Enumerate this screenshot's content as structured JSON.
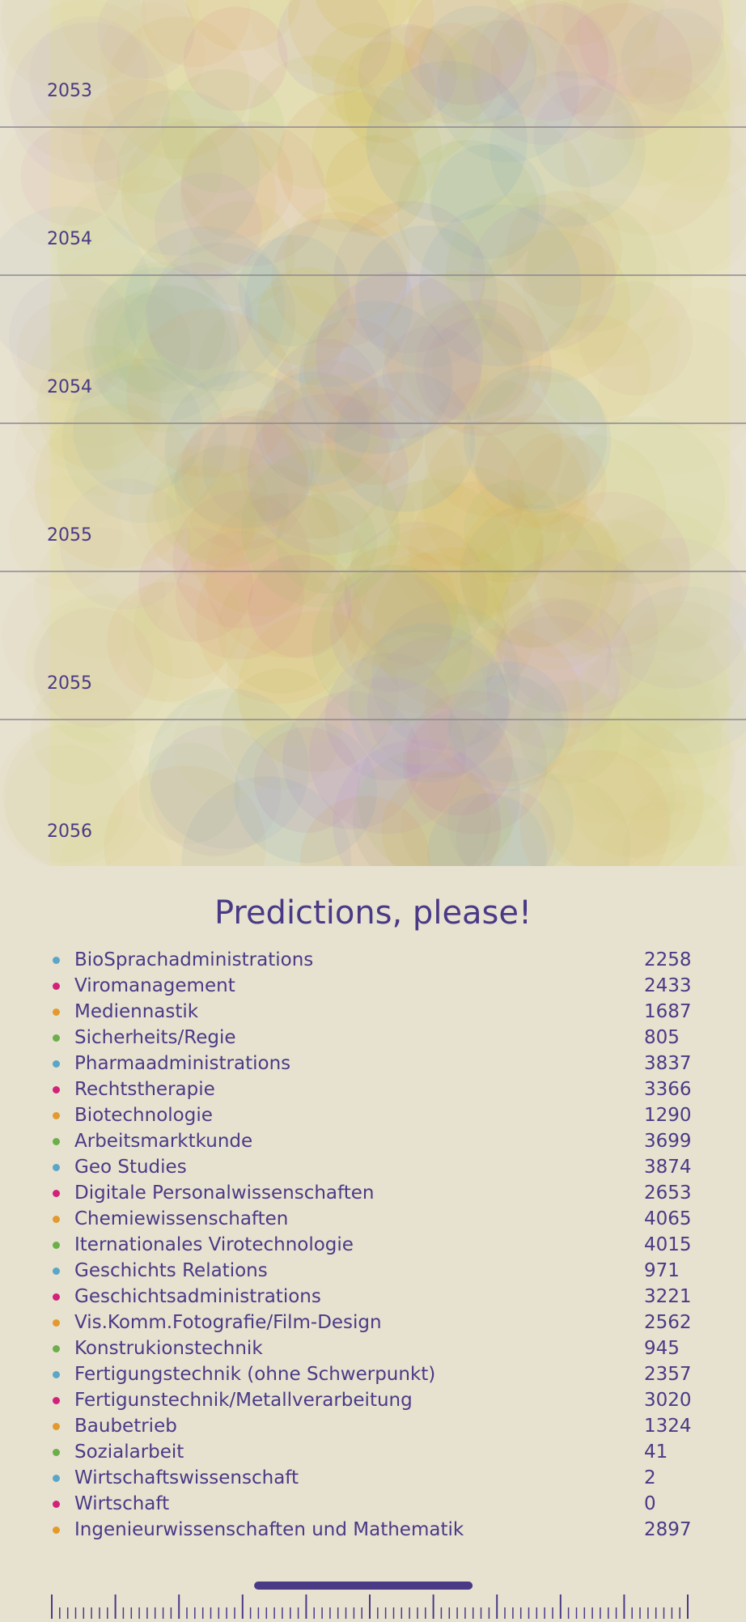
{
  "visualization": {
    "year_labels": [
      "2053",
      "2054",
      "2054",
      "2055",
      "2055",
      "2056"
    ],
    "colors": [
      "#d6b43a",
      "#c9c25a",
      "#9bbd6a",
      "#d67aa0",
      "#e2a053",
      "#7fa7c6",
      "#b48ad0",
      "#d2cf8a"
    ]
  },
  "title": "Predictions, please!",
  "legend": [
    {
      "label": "BioSprachadministrations",
      "count": "2258",
      "color": "#5aa6c8"
    },
    {
      "label": "Viromanagement",
      "count": "2433",
      "color": "#d2217a"
    },
    {
      "label": "Mediennastik",
      "count": "1687",
      "color": "#e39a2d"
    },
    {
      "label": "Sicherheits/Regie",
      "count": "805",
      "color": "#6cae4a"
    },
    {
      "label": "Pharmaadministrations",
      "count": "3837",
      "color": "#5aa6c8"
    },
    {
      "label": "Rechtstherapie",
      "count": "3366",
      "color": "#d2217a"
    },
    {
      "label": "Biotechnologie",
      "count": "1290",
      "color": "#e39a2d"
    },
    {
      "label": "Arbeitsmarktkunde",
      "count": "3699",
      "color": "#6cae4a"
    },
    {
      "label": "Geo Studies",
      "count": "3874",
      "color": "#5aa6c8"
    },
    {
      "label": "Digitale Personalwissenschaften",
      "count": "2653",
      "color": "#d2217a"
    },
    {
      "label": "Chemiewissenschaften",
      "count": "4065",
      "color": "#e39a2d"
    },
    {
      "label": "Iternationales Virotechnologie",
      "count": "4015",
      "color": "#6cae4a"
    },
    {
      "label": "Geschichts Relations",
      "count": "971",
      "color": "#5aa6c8"
    },
    {
      "label": "Geschichtsadministrations",
      "count": "3221",
      "color": "#d2217a"
    },
    {
      "label": "Vis.Komm.Fotografie/Film-Design",
      "count": "2562",
      "color": "#e39a2d"
    },
    {
      "label": "Konstrukionstechnik",
      "count": "945",
      "color": "#6cae4a"
    },
    {
      "label": "Fertigungstechnik (ohne Schwerpunkt)",
      "count": "2357",
      "color": "#5aa6c8"
    },
    {
      "label": "Fertigunstechnik/Metallverarbeitung",
      "count": "3020",
      "color": "#d2217a"
    },
    {
      "label": "Baubetrieb",
      "count": "1324",
      "color": "#e39a2d"
    },
    {
      "label": "Sozialarbeit",
      "count": "41",
      "color": "#6cae4a"
    },
    {
      "label": "Wirtschaftswissenschaft",
      "count": "2",
      "color": "#5aa6c8"
    },
    {
      "label": "Wirtschaft",
      "count": "0",
      "color": "#d2217a"
    },
    {
      "label": "Ingenieurwissenschaften und Mathematik",
      "count": "2897",
      "color": "#e39a2d"
    }
  ],
  "timeline": {
    "accent_color": "#4a3a86",
    "position": 0.49
  }
}
